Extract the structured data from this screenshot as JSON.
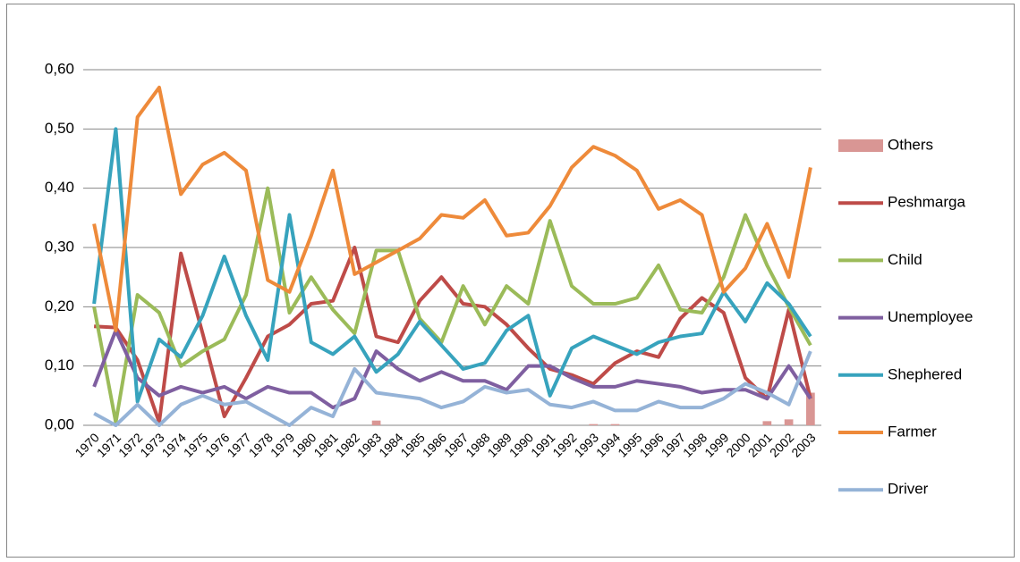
{
  "chart_data": {
    "type": "line",
    "categories": [
      "1970",
      "1971",
      "1972",
      "1973",
      "1974",
      "1975",
      "1976",
      "1977",
      "1978",
      "1979",
      "1980",
      "1981",
      "1982",
      "1983",
      "1984",
      "1985",
      "1986",
      "1987",
      "1988",
      "1989",
      "1990",
      "1991",
      "1992",
      "1993",
      "1994",
      "1995",
      "1996",
      "1997",
      "1998",
      "1999",
      "2000",
      "2001",
      "2002",
      "2003"
    ],
    "ylim": [
      0,
      0.6
    ],
    "yticks": [
      {
        "value": 0,
        "label": "0,00"
      },
      {
        "value": 0.1,
        "label": "0,10"
      },
      {
        "value": 0.2,
        "label": "0,20"
      },
      {
        "value": 0.3,
        "label": "0,30"
      },
      {
        "value": 0.4,
        "label": "0,40"
      },
      {
        "value": 0.5,
        "label": "0,50"
      },
      {
        "value": 0.6,
        "label": "0,60"
      }
    ],
    "grid": true,
    "legend": "right",
    "series": [
      {
        "name": "Others",
        "type": "bar",
        "color": "#d99694",
        "values": [
          0,
          0,
          0,
          0,
          0,
          0,
          0,
          0,
          0,
          0,
          0,
          0,
          0,
          0.008,
          0,
          0,
          0,
          0,
          0,
          0,
          0,
          0,
          0,
          0.002,
          0.002,
          0,
          0,
          0,
          0,
          0,
          0,
          0.007,
          0.01,
          0.055
        ]
      },
      {
        "name": "Peshmarga",
        "color": "#be4b48",
        "values": [
          0.167,
          0.165,
          0.11,
          0.005,
          0.29,
          0.155,
          0.015,
          0.08,
          0.15,
          0.17,
          0.205,
          0.21,
          0.3,
          0.15,
          0.14,
          0.21,
          0.25,
          0.205,
          0.2,
          0.17,
          0.13,
          0.095,
          0.085,
          0.07,
          0.105,
          0.125,
          0.115,
          0.18,
          0.215,
          0.19,
          0.08,
          0.045,
          0.195,
          0.045
        ]
      },
      {
        "name": "Child",
        "color": "#9bbb59",
        "values": [
          0.2,
          0.005,
          0.22,
          0.19,
          0.1,
          0.125,
          0.145,
          0.22,
          0.4,
          0.19,
          0.25,
          0.195,
          0.155,
          0.295,
          0.295,
          0.18,
          0.14,
          0.235,
          0.17,
          0.235,
          0.205,
          0.345,
          0.235,
          0.205,
          0.205,
          0.215,
          0.27,
          0.195,
          0.19,
          0.25,
          0.355,
          0.27,
          0.2,
          0.135
        ]
      },
      {
        "name": "Unemployee",
        "color": "#7f5fa0",
        "values": [
          0.065,
          0.16,
          0.08,
          0.05,
          0.065,
          0.055,
          0.065,
          0.045,
          0.065,
          0.055,
          0.055,
          0.03,
          0.045,
          0.125,
          0.095,
          0.075,
          0.09,
          0.075,
          0.075,
          0.06,
          0.1,
          0.1,
          0.08,
          0.065,
          0.065,
          0.075,
          0.07,
          0.065,
          0.055,
          0.06,
          0.06,
          0.045,
          0.1,
          0.045
        ]
      },
      {
        "name": "Shephered",
        "color": "#37a3bd",
        "values": [
          0.205,
          0.5,
          0.04,
          0.145,
          0.115,
          0.185,
          0.285,
          0.185,
          0.11,
          0.355,
          0.14,
          0.12,
          0.15,
          0.09,
          0.12,
          0.175,
          0.135,
          0.095,
          0.105,
          0.16,
          0.185,
          0.05,
          0.13,
          0.15,
          0.135,
          0.12,
          0.14,
          0.15,
          0.155,
          0.225,
          0.175,
          0.24,
          0.205,
          0.15
        ]
      },
      {
        "name": "Farmer",
        "color": "#ee8a3a",
        "values": [
          0.34,
          0.16,
          0.52,
          0.57,
          0.39,
          0.44,
          0.46,
          0.43,
          0.245,
          0.225,
          0.32,
          0.43,
          0.255,
          0.275,
          0.295,
          0.315,
          0.355,
          0.35,
          0.38,
          0.32,
          0.325,
          0.37,
          0.435,
          0.47,
          0.455,
          0.43,
          0.365,
          0.38,
          0.355,
          0.225,
          0.265,
          0.34,
          0.25,
          0.435
        ]
      },
      {
        "name": "Driver",
        "color": "#95b3d7",
        "values": [
          0.02,
          0,
          0.035,
          0,
          0.035,
          0.05,
          0.035,
          0.04,
          0.02,
          0,
          0.03,
          0.015,
          0.095,
          0.055,
          0.05,
          0.045,
          0.03,
          0.04,
          0.065,
          0.055,
          0.06,
          0.035,
          0.03,
          0.04,
          0.025,
          0.025,
          0.04,
          0.03,
          0.03,
          0.045,
          0.07,
          0.055,
          0.035,
          0.125
        ]
      }
    ]
  }
}
